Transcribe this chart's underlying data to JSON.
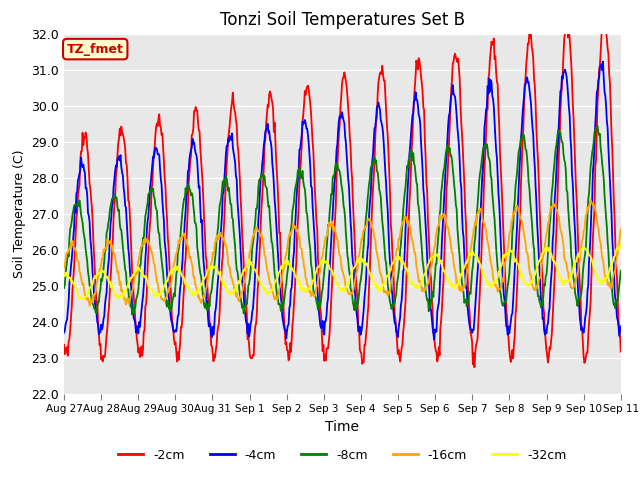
{
  "title": "Tonzi Soil Temperatures Set B",
  "xlabel": "Time",
  "ylabel": "Soil Temperature (C)",
  "ylim": [
    22.0,
    32.0
  ],
  "yticks": [
    22.0,
    23.0,
    24.0,
    25.0,
    26.0,
    27.0,
    28.0,
    29.0,
    30.0,
    31.0,
    32.0
  ],
  "series_colors": [
    "red",
    "blue",
    "green",
    "orange",
    "yellow"
  ],
  "series_labels": [
    "-2cm",
    "-4cm",
    "-8cm",
    "-16cm",
    "-32cm"
  ],
  "annotation_text": "TZ_fmet",
  "annotation_color": "#cc0000",
  "annotation_bg": "#ffffcc",
  "annotation_border": "#cc0000",
  "plot_bg": "#e8e8e8",
  "tick_labels": [
    "Aug 27",
    "Aug 28",
    "Aug 29",
    "Aug 30",
    "Aug 31",
    "Sep 1",
    "Sep 2",
    "Sep 3",
    "Sep 4",
    "Sep 5",
    "Sep 6",
    "Sep 7",
    "Sep 8",
    "Sep 9",
    "Sep 10",
    "Sep 11"
  ]
}
